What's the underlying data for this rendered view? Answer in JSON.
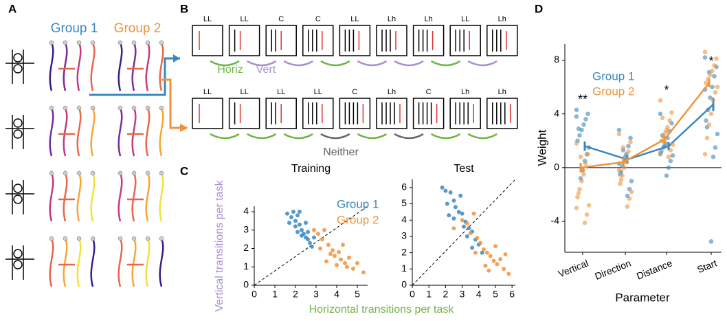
{
  "panels": {
    "a": "A",
    "b": "B",
    "c": "C",
    "d": "D"
  },
  "panel_a": {
    "groups": [
      "Group 1",
      "Group 2"
    ]
  },
  "panel_b": {
    "row1_labels": [
      "LL",
      "LL",
      "C",
      "C",
      "LL",
      "Lh",
      "Lh",
      "LL",
      "Lh"
    ],
    "row1_horiz": "Horiz",
    "row1_vert": "Vert",
    "row2_labels": [
      "LL",
      "LL",
      "LL",
      "LL",
      "C",
      "Lh",
      "C",
      "Lh",
      "Lh"
    ],
    "row2_neither": "Neither"
  },
  "chart_data": [
    {
      "type": "scatter",
      "title": "Training",
      "xlabel": "Horizontal transitions per task",
      "ylabel": "Vertical transitions per task",
      "xlim": [
        0,
        5.5
      ],
      "ylim": [
        0,
        4.3
      ],
      "xticks": [
        0,
        1,
        2,
        3,
        4,
        5
      ],
      "yticks": [
        0,
        1,
        2,
        3,
        4
      ],
      "series": [
        {
          "name": "Group 1",
          "color": "#3a87c0",
          "x": [
            1.6,
            1.8,
            1.9,
            2.0,
            2.1,
            2.2,
            2.3,
            2.4,
            2.5,
            2.6,
            2.3,
            2.1,
            2.7,
            2.5,
            2.8,
            2.0,
            1.7,
            2.9,
            2.6,
            2.2
          ],
          "y": [
            3.9,
            3.7,
            4.0,
            3.5,
            3.8,
            3.3,
            3.0,
            2.8,
            2.6,
            2.5,
            2.7,
            2.9,
            2.3,
            3.4,
            2.1,
            3.2,
            3.4,
            2.6,
            2.9,
            4.0
          ]
        },
        {
          "name": "Group 2",
          "color": "#f0923a",
          "x": [
            2.9,
            3.1,
            3.3,
            3.4,
            3.6,
            3.8,
            3.9,
            4.1,
            4.2,
            4.4,
            4.6,
            3.5,
            4.0,
            4.8,
            5.0,
            5.3,
            4.3,
            3.7,
            4.5,
            3.2
          ],
          "y": [
            3.0,
            2.8,
            2.5,
            3.0,
            2.2,
            1.9,
            1.6,
            1.8,
            1.4,
            1.2,
            1.5,
            1.3,
            1.1,
            0.9,
            1.2,
            0.7,
            2.2,
            1.7,
            1.0,
            2.0
          ]
        }
      ]
    },
    {
      "type": "scatter",
      "title": "Test",
      "xlim": [
        0,
        6.2
      ],
      "ylim": [
        0,
        6.5
      ],
      "xticks": [
        0,
        1,
        2,
        3,
        4,
        5,
        6
      ],
      "yticks": [
        0,
        1,
        2,
        3,
        4,
        5,
        6
      ],
      "series": [
        {
          "color": "#3a87c0",
          "x": [
            1.8,
            2.0,
            2.3,
            2.5,
            2.1,
            2.6,
            2.8,
            2.5,
            3.0,
            3.2,
            3.4,
            3.6,
            3.3,
            3.8,
            4.0,
            3.1,
            2.2,
            3.6,
            4.2,
            2.9
          ],
          "y": [
            6.0,
            5.8,
            5.7,
            5.2,
            5.0,
            4.8,
            4.5,
            4.1,
            4.4,
            3.9,
            3.5,
            3.3,
            3.0,
            2.8,
            2.5,
            3.6,
            4.3,
            2.3,
            2.0,
            5.5
          ]
        },
        {
          "color": "#f0923a",
          "x": [
            2.5,
            3.0,
            3.3,
            3.5,
            3.7,
            3.9,
            4.1,
            4.3,
            4.5,
            4.7,
            4.9,
            5.1,
            5.3,
            5.5,
            5.8,
            4.4,
            5.0,
            3.8,
            4.6,
            5.6
          ],
          "y": [
            3.5,
            4.0,
            3.8,
            3.2,
            4.4,
            2.9,
            2.6,
            2.2,
            2.0,
            1.8,
            1.5,
            1.3,
            1.6,
            1.0,
            0.7,
            1.2,
            2.4,
            2.0,
            0.9,
            1.9
          ]
        }
      ]
    },
    {
      "type": "strip",
      "xlabel": "Parameter",
      "ylabel": "Weight",
      "categories": [
        "Vertical",
        "Direction",
        "Distance",
        "Start"
      ],
      "ylim": [
        -6.3,
        9.2
      ],
      "yticks": [
        -4,
        0,
        4,
        8
      ],
      "annotations": [
        {
          "x": "Vertical",
          "text": "**"
        },
        {
          "x": "Distance",
          "text": "*"
        },
        {
          "x": "Start",
          "text": "*"
        }
      ],
      "series": [
        {
          "name": "Group 1",
          "color": "#3a87c0",
          "means": [
            1.6,
            0.6,
            1.6,
            4.7
          ],
          "errors": [
            0.35,
            0.3,
            0.3,
            0.5
          ],
          "points": [
            [
              4.3,
              4.0,
              3.6,
              3.2,
              2.8,
              2.4,
              2.0,
              1.5,
              1.0,
              0.5,
              -0.2,
              -0.8,
              2.9,
              3.8
            ],
            [
              2.8,
              2.2,
              1.6,
              1.0,
              0.5,
              0.1,
              -0.5,
              -1.0,
              -1.6,
              -2.1,
              0.8,
              1.3,
              -0.3,
              0.3
            ],
            [
              4.0,
              3.3,
              2.7,
              2.2,
              1.8,
              1.5,
              1.2,
              0.9,
              0.5,
              0.0,
              -0.6,
              1.6,
              2.4,
              1.0
            ],
            [
              8.2,
              7.5,
              6.8,
              6.0,
              5.2,
              4.3,
              3.5,
              2.5,
              1.5,
              0.8,
              -5.5,
              7.1,
              3.0,
              5.8
            ]
          ]
        },
        {
          "name": "Group 2",
          "color": "#f0923a",
          "means": [
            0.0,
            0.4,
            2.1,
            6.3
          ],
          "errors": [
            0.35,
            0.3,
            0.3,
            0.3
          ],
          "points": [
            [
              1.8,
              1.0,
              0.3,
              -0.5,
              -1.0,
              -1.6,
              -2.2,
              -2.8,
              -3.5,
              -4.1,
              -0.2,
              0.8,
              -1.9,
              -3.0
            ],
            [
              2.5,
              1.9,
              1.2,
              0.6,
              0.0,
              -0.6,
              -1.2,
              -1.8,
              -2.3,
              -2.9,
              0.4,
              1.5,
              -0.9,
              -0.2
            ],
            [
              5.0,
              4.1,
              3.5,
              3.0,
              2.6,
              2.3,
              2.0,
              1.7,
              1.3,
              0.8,
              2.8,
              1.9,
              3.7,
              1.1
            ],
            [
              8.6,
              8.1,
              7.6,
              7.2,
              6.9,
              6.6,
              6.3,
              6.0,
              5.6,
              5.0,
              4.0,
              3.2,
              2.2,
              1.0
            ]
          ]
        }
      ]
    }
  ]
}
